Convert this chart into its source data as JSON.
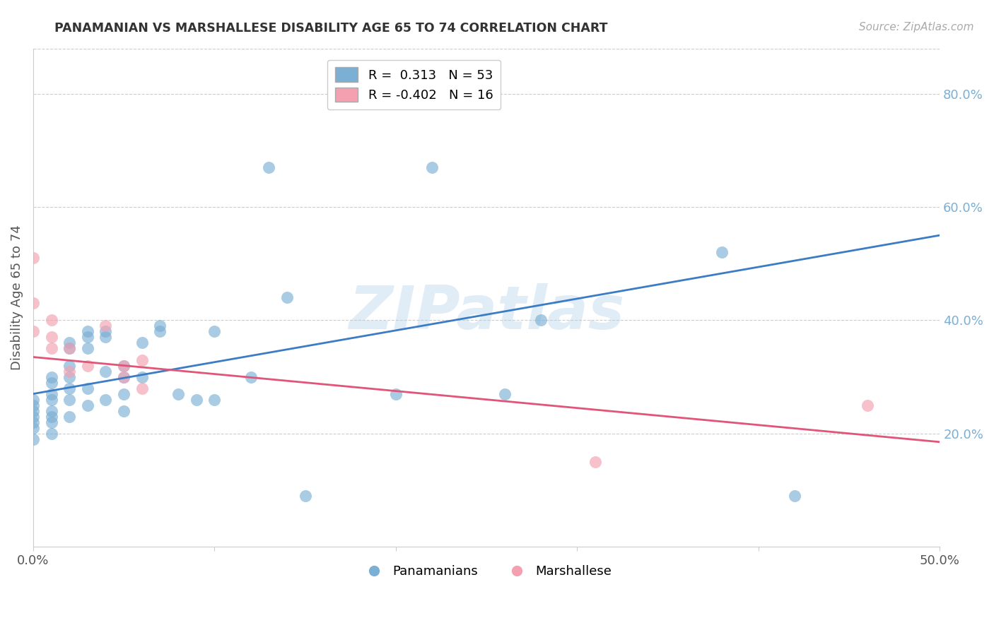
{
  "title": "PANAMANIAN VS MARSHALLESE DISABILITY AGE 65 TO 74 CORRELATION CHART",
  "source": "Source: ZipAtlas.com",
  "ylabel": "Disability Age 65 to 74",
  "xlabel": "",
  "xlim": [
    0.0,
    0.5
  ],
  "ylim": [
    0.0,
    0.88
  ],
  "yticks_right": [
    0.2,
    0.4,
    0.6,
    0.8
  ],
  "ytick_labels_right": [
    "20.0%",
    "40.0%",
    "60.0%",
    "80.0%"
  ],
  "xticks": [
    0.0,
    0.1,
    0.2,
    0.3,
    0.4,
    0.5
  ],
  "xtick_labels": [
    "0.0%",
    "",
    "",
    "",
    "",
    "50.0%"
  ],
  "blue_color": "#7BAFD4",
  "pink_color": "#F4A0B0",
  "blue_line_color": "#3B7CC4",
  "pink_line_color": "#E05578",
  "blue_R": 0.313,
  "blue_N": 53,
  "pink_R": -0.402,
  "pink_N": 16,
  "watermark": "ZIPatlas",
  "background_color": "#ffffff",
  "grid_color": "#cccccc",
  "right_tick_color": "#7BAFD4",
  "blue_scatter_x": [
    0.0,
    0.0,
    0.0,
    0.0,
    0.0,
    0.0,
    0.0,
    0.01,
    0.01,
    0.01,
    0.01,
    0.01,
    0.01,
    0.01,
    0.01,
    0.02,
    0.02,
    0.02,
    0.02,
    0.02,
    0.02,
    0.02,
    0.03,
    0.03,
    0.03,
    0.03,
    0.03,
    0.04,
    0.04,
    0.04,
    0.04,
    0.05,
    0.05,
    0.05,
    0.05,
    0.06,
    0.06,
    0.07,
    0.07,
    0.08,
    0.09,
    0.1,
    0.1,
    0.12,
    0.13,
    0.14,
    0.15,
    0.2,
    0.22,
    0.26,
    0.28,
    0.38,
    0.42
  ],
  "blue_scatter_y": [
    0.26,
    0.25,
    0.24,
    0.23,
    0.22,
    0.21,
    0.19,
    0.3,
    0.29,
    0.27,
    0.26,
    0.24,
    0.23,
    0.22,
    0.2,
    0.36,
    0.35,
    0.32,
    0.3,
    0.28,
    0.26,
    0.23,
    0.38,
    0.37,
    0.35,
    0.28,
    0.25,
    0.38,
    0.37,
    0.31,
    0.26,
    0.32,
    0.3,
    0.27,
    0.24,
    0.36,
    0.3,
    0.39,
    0.38,
    0.27,
    0.26,
    0.38,
    0.26,
    0.3,
    0.67,
    0.44,
    0.09,
    0.27,
    0.67,
    0.27,
    0.4,
    0.52,
    0.09
  ],
  "pink_scatter_x": [
    0.0,
    0.0,
    0.0,
    0.01,
    0.01,
    0.01,
    0.02,
    0.02,
    0.03,
    0.04,
    0.05,
    0.05,
    0.06,
    0.06,
    0.31,
    0.46
  ],
  "pink_scatter_y": [
    0.51,
    0.43,
    0.38,
    0.4,
    0.37,
    0.35,
    0.35,
    0.31,
    0.32,
    0.39,
    0.32,
    0.3,
    0.33,
    0.28,
    0.15,
    0.25
  ],
  "blue_line_x0": 0.0,
  "blue_line_y0": 0.27,
  "blue_line_x1": 0.5,
  "blue_line_y1": 0.55,
  "pink_line_x0": 0.0,
  "pink_line_y0": 0.335,
  "pink_line_x1": 0.5,
  "pink_line_y1": 0.185
}
